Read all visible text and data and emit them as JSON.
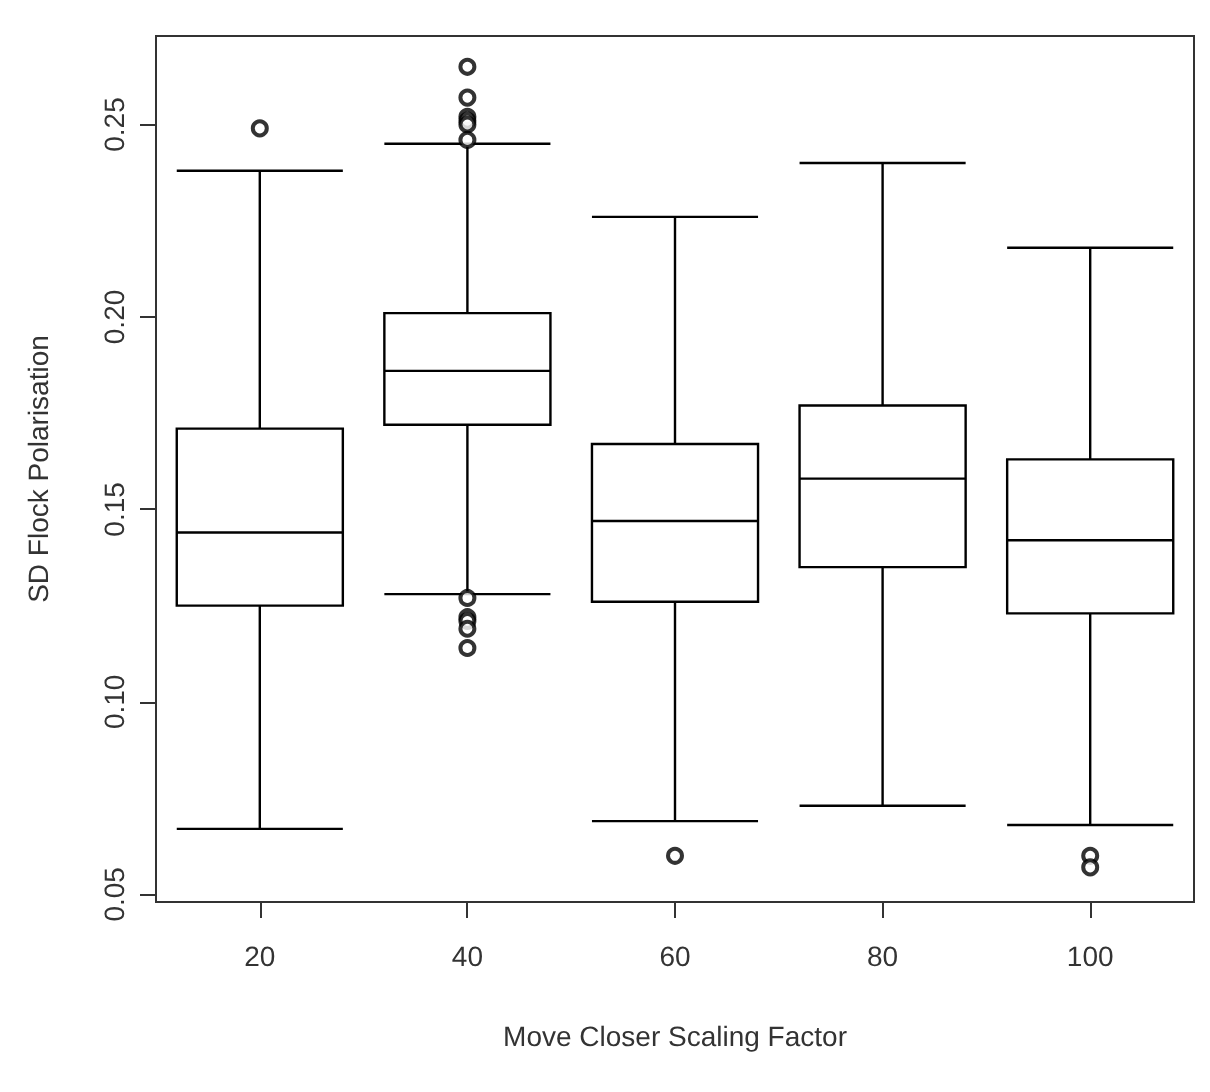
{
  "chart_data": {
    "type": "box",
    "xlabel": "Move Closer Scaling Factor",
    "ylabel": "SD Flock Polarisation",
    "categories": [
      "20",
      "40",
      "60",
      "80",
      "100"
    ],
    "boxes": [
      {
        "low": 0.067,
        "q1": 0.125,
        "median": 0.144,
        "q3": 0.171,
        "high": 0.238,
        "outliers": [
          0.249
        ]
      },
      {
        "low": 0.128,
        "q1": 0.172,
        "median": 0.186,
        "q3": 0.201,
        "high": 0.245,
        "outliers": [
          0.265,
          0.257,
          0.252,
          0.251,
          0.25,
          0.246,
          0.127,
          0.122,
          0.121,
          0.119,
          0.114
        ]
      },
      {
        "low": 0.069,
        "q1": 0.126,
        "median": 0.147,
        "q3": 0.167,
        "high": 0.226,
        "outliers": [
          0.06
        ]
      },
      {
        "low": 0.073,
        "q1": 0.135,
        "median": 0.158,
        "q3": 0.177,
        "high": 0.24
      },
      {
        "low": 0.068,
        "q1": 0.123,
        "median": 0.142,
        "q3": 0.163,
        "high": 0.218,
        "outliers": [
          0.06,
          0.057
        ]
      }
    ],
    "ylim": [
      0.048,
      0.273
    ],
    "yticks": [
      0.05,
      {
        "value": 0.1,
        "label": "0.10"
      },
      0.15,
      {
        "value": 0.2,
        "label": "0.20"
      },
      0.25
    ]
  }
}
